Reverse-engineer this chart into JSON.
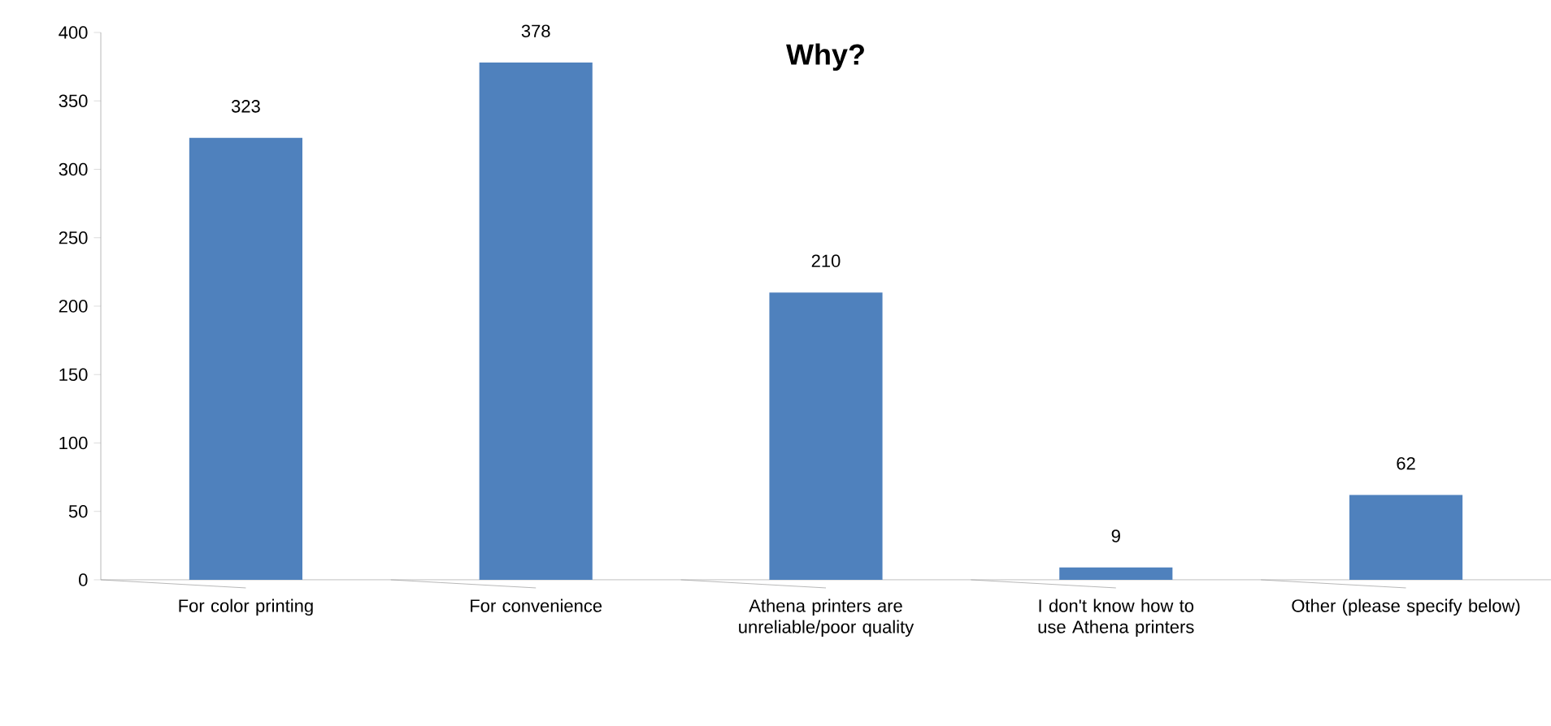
{
  "chart_data": {
    "type": "bar",
    "title": "Why?",
    "categories": [
      "For color printing",
      "For convenience",
      "Athena printers are unreliable/poor quality",
      "I don't know how to use Athena printers",
      "Other (please specify below)"
    ],
    "values": [
      323,
      378,
      210,
      9,
      62
    ],
    "color": "#4f81bd",
    "ylim": [
      0,
      400
    ],
    "yticks": [
      0,
      50,
      100,
      150,
      200,
      250,
      300,
      350,
      400
    ],
    "data_labels": true
  }
}
